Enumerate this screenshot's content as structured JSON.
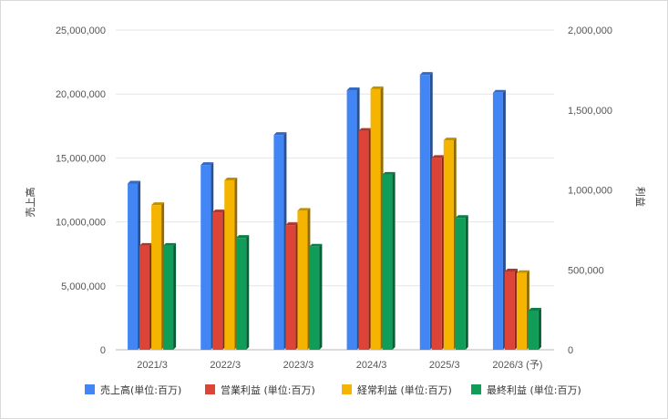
{
  "chart_data": {
    "type": "bar",
    "categories": [
      "2021/3",
      "2022/3",
      "2023/3",
      "2024/3",
      "2025/3",
      "2026/3 (予)"
    ],
    "series": [
      {
        "name": "売上高(単位:百万)",
        "axis": "left",
        "color": "#4285f4",
        "values": [
          13000000,
          14450000,
          16800000,
          20300000,
          21500000,
          20100000
        ]
      },
      {
        "name": "営業利益 (単位:百万)",
        "axis": "right",
        "color": "#db4437",
        "values": [
          650000,
          860000,
          780000,
          1370000,
          1200000,
          490000
        ]
      },
      {
        "name": "経常利益 (単位:百万)",
        "axis": "right",
        "color": "#f4b400",
        "values": [
          905000,
          1060000,
          870000,
          1630000,
          1310000,
          480000
        ]
      },
      {
        "name": "最終利益 (単位:百万)",
        "axis": "right",
        "color": "#0f9d58",
        "values": [
          650000,
          700000,
          645000,
          1095000,
          825000,
          245000
        ]
      }
    ],
    "ylabel_left": "売上高",
    "ylabel_right": "利益",
    "ylim_left": [
      0,
      25000000
    ],
    "ylim_right": [
      0,
      2000000
    ],
    "left_ticks": [
      "0",
      "5,000,000",
      "10,000,000",
      "15,000,000",
      "20,000,000",
      "25,000,000"
    ],
    "right_ticks": [
      "0",
      "500,000",
      "1,000,000",
      "1,500,000",
      "2,000,000"
    ],
    "grid": true,
    "legend_position": "bottom"
  }
}
